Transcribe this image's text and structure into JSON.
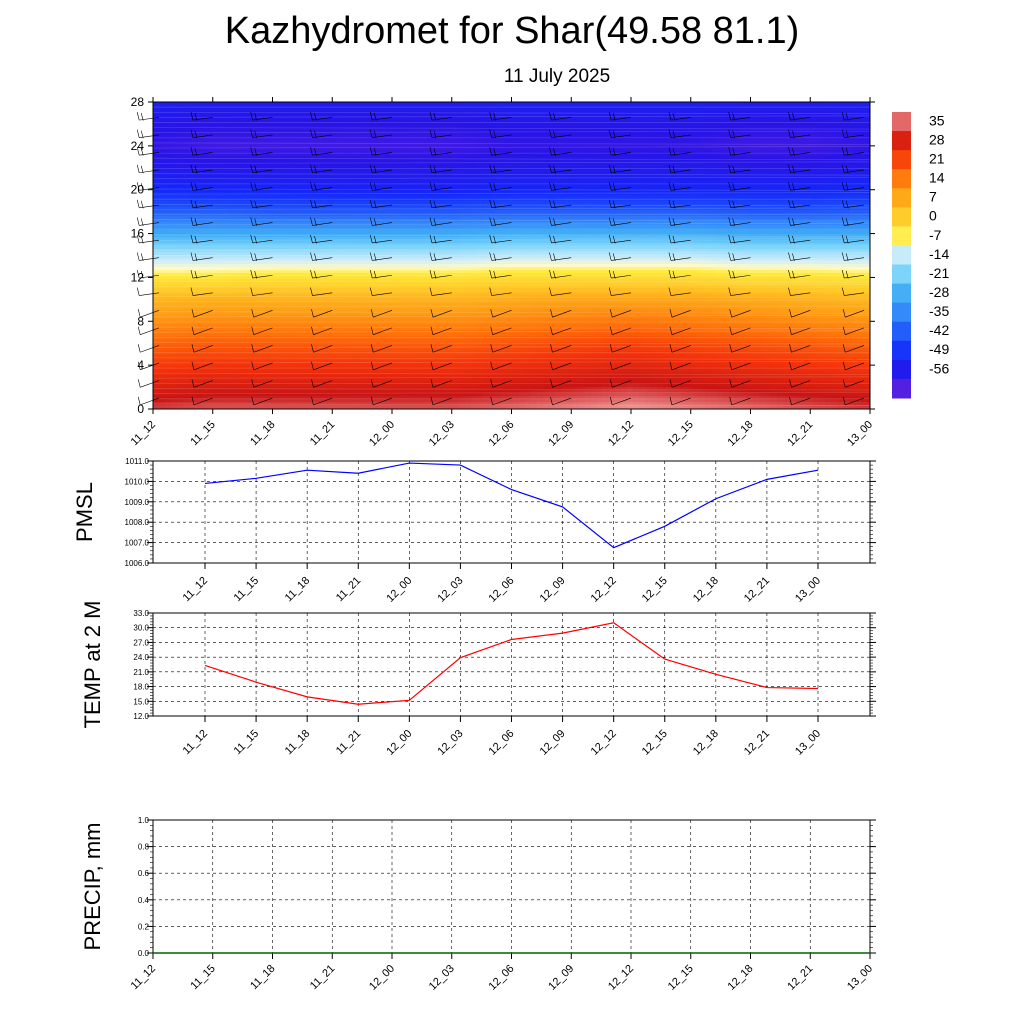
{
  "title": "Kazhydromet for Shar(49.58 81.1)",
  "subtitle": "11 July 2025",
  "chart_data": [
    {
      "type": "heatmap",
      "name": "temperature-cross-section",
      "x_labels": [
        "11_12",
        "11_15",
        "11_18",
        "11_21",
        "12_00",
        "12_03",
        "12_06",
        "12_09",
        "12_12",
        "12_15",
        "12_18",
        "12_21",
        "13_00"
      ],
      "y_ticks": [
        0,
        4,
        8,
        12,
        16,
        20,
        24,
        28
      ],
      "ylim": [
        0,
        28
      ],
      "colorbar_labels": [
        "35",
        "28",
        "21",
        "14",
        "7",
        "0",
        "-7",
        "-14",
        "-21",
        "-28",
        "-35",
        "-42",
        "-49",
        "-56"
      ],
      "colorbar_range": [
        -63,
        35
      ],
      "overlay": "wind barbs",
      "rows_y": [
        0,
        2,
        4,
        6,
        8,
        10,
        12,
        14,
        16,
        18,
        20,
        22,
        24,
        26,
        28
      ],
      "values": [
        [
          30,
          31,
          31,
          31,
          31,
          31,
          32,
          33,
          34,
          33,
          32,
          31,
          30
        ],
        [
          25,
          26,
          26,
          26,
          26,
          26,
          27,
          28,
          29,
          28,
          27,
          26,
          25
        ],
        [
          20,
          21,
          21,
          21,
          21,
          21,
          22,
          23,
          24,
          23,
          22,
          21,
          20
        ],
        [
          15,
          16,
          16,
          16,
          16,
          16,
          17,
          18,
          19,
          18,
          17,
          16,
          15
        ],
        [
          9,
          10,
          10,
          10,
          10,
          10,
          11,
          12,
          13,
          12,
          11,
          10,
          9
        ],
        [
          3,
          4,
          4,
          4,
          4,
          4,
          5,
          6,
          6,
          6,
          5,
          4,
          3
        ],
        [
          -6,
          -6,
          -5,
          -5,
          -5,
          -5,
          -4,
          -4,
          -4,
          -4,
          -5,
          -5,
          -6
        ],
        [
          -16,
          -16,
          -16,
          -16,
          -16,
          -16,
          -15,
          -15,
          -15,
          -15,
          -16,
          -16,
          -16
        ],
        [
          -28,
          -28,
          -28,
          -28,
          -28,
          -28,
          -27,
          -27,
          -27,
          -27,
          -28,
          -28,
          -28
        ],
        [
          -40,
          -40,
          -41,
          -41,
          -41,
          -41,
          -40,
          -40,
          -40,
          -40,
          -41,
          -41,
          -40
        ],
        [
          -49,
          -50,
          -50,
          -51,
          -51,
          -51,
          -50,
          -50,
          -50,
          -50,
          -50,
          -50,
          -49
        ],
        [
          -54,
          -55,
          -55,
          -55,
          -55,
          -55,
          -54,
          -54,
          -54,
          -54,
          -55,
          -55,
          -54
        ],
        [
          -57,
          -58,
          -58,
          -58,
          -58,
          -58,
          -57,
          -57,
          -57,
          -57,
          -58,
          -58,
          -57
        ],
        [
          -55,
          -56,
          -56,
          -56,
          -56,
          -56,
          -55,
          -55,
          -55,
          -55,
          -56,
          -56,
          -55
        ],
        [
          -52,
          -53,
          -53,
          -53,
          -53,
          -53,
          -52,
          -52,
          -52,
          -52,
          -53,
          -53,
          -52
        ]
      ]
    },
    {
      "type": "line",
      "name": "pmsl",
      "ylabel": "PMSL",
      "x_labels": [
        "11_12",
        "11_15",
        "11_18",
        "11_21",
        "12_00",
        "12_03",
        "12_06",
        "12_09",
        "12_12",
        "12_15",
        "12_18",
        "12_21",
        "13_00"
      ],
      "y_ticks": [
        "1006.0",
        "1007.0",
        "1008.0",
        "1009.0",
        "1010.0",
        "1011.0"
      ],
      "ylim": [
        1006,
        1011
      ],
      "color": "#0000ff",
      "series": [
        {
          "values": [
            1009.9,
            1010.15,
            1010.55,
            1010.4,
            1010.9,
            1010.8,
            1009.6,
            1008.75,
            1006.75,
            1007.8,
            1009.15,
            1010.1,
            1010.55
          ]
        }
      ]
    },
    {
      "type": "line",
      "name": "temp-2m",
      "ylabel": "TEMP at 2 M",
      "x_labels": [
        "11_12",
        "11_15",
        "11_18",
        "11_21",
        "12_00",
        "12_03",
        "12_06",
        "12_09",
        "12_12",
        "12_15",
        "12_18",
        "12_21",
        "13_00"
      ],
      "y_ticks": [
        "12.0",
        "15.0",
        "18.0",
        "21.0",
        "24.0",
        "27.0",
        "30.0",
        "33.0"
      ],
      "ylim": [
        12,
        33
      ],
      "color": "#ff0000",
      "series": [
        {
          "values": [
            22.3,
            18.9,
            15.9,
            14.4,
            15.2,
            23.9,
            27.6,
            28.9,
            31.0,
            23.6,
            20.5,
            17.8,
            17.6
          ]
        }
      ]
    },
    {
      "type": "line",
      "name": "precip",
      "ylabel": "PRECIP, mm",
      "x_labels": [
        "11_12",
        "11_15",
        "11_18",
        "11_21",
        "12_00",
        "12_03",
        "12_06",
        "12_09",
        "12_12",
        "12_15",
        "12_18",
        "12_21",
        "13_00"
      ],
      "y_ticks": [
        "0.0",
        "0.2",
        "0.4",
        "0.6",
        "0.8",
        "1.0"
      ],
      "ylim": [
        0,
        1
      ],
      "color": "#006400",
      "series": [
        {
          "values": [
            0,
            0,
            0,
            0,
            0,
            0,
            0,
            0,
            0,
            0,
            0,
            0,
            0
          ]
        }
      ]
    }
  ]
}
